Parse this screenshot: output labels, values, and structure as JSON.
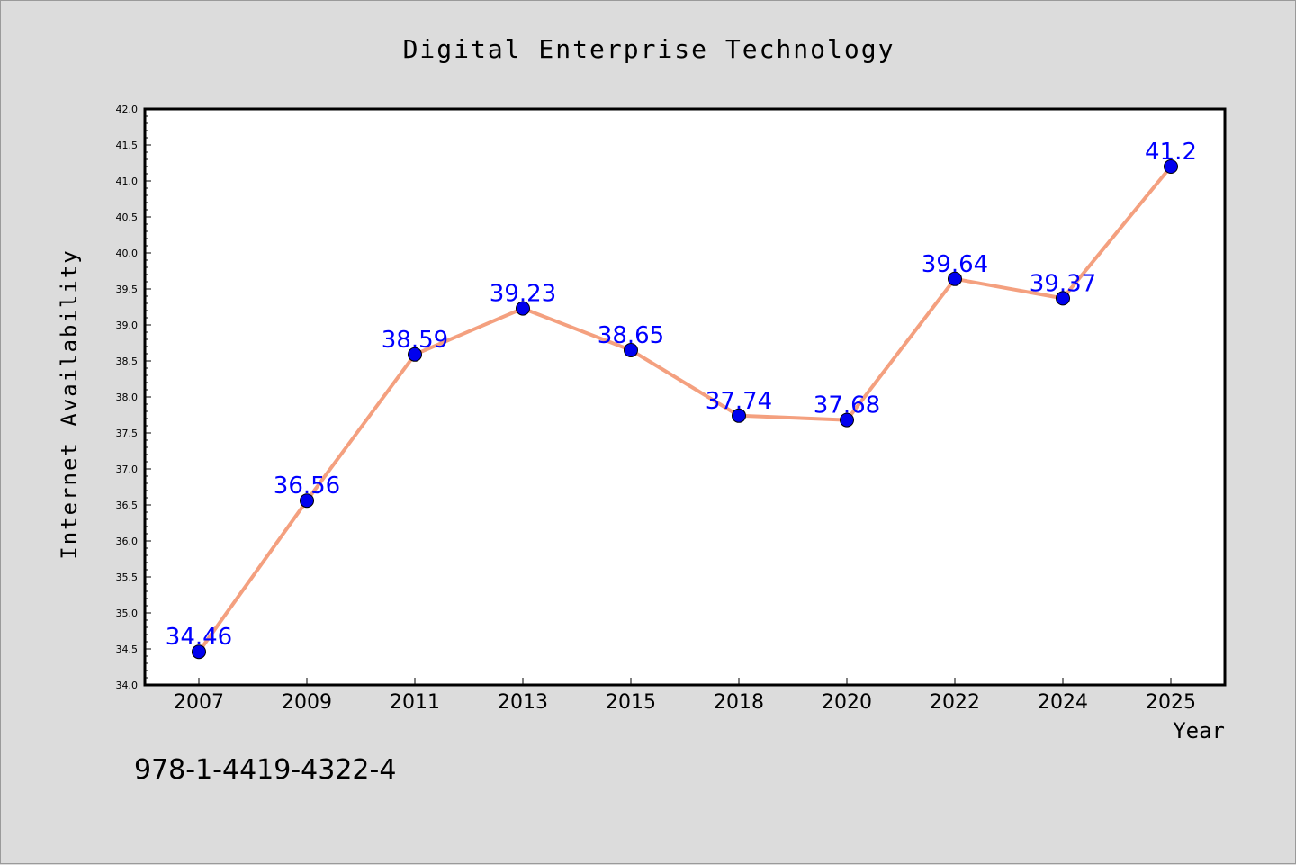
{
  "chart_data": {
    "type": "line",
    "title": "Digital Enterprise Technology",
    "xlabel": "Year",
    "ylabel": "Internet Availability",
    "categories": [
      "2007",
      "2009",
      "2011",
      "2013",
      "2015",
      "2018",
      "2020",
      "2022",
      "2024",
      "2025"
    ],
    "series": [
      {
        "values": [
          34.46,
          36.56,
          38.59,
          39.23,
          38.65,
          37.74,
          37.68,
          39.64,
          39.37,
          41.2
        ],
        "labels": [
          "34.46",
          "36.56",
          "38.59",
          "39.23",
          "38.65",
          "37.74",
          "37.68",
          "39.64",
          "39.37",
          "41.2"
        ]
      }
    ],
    "ylim": [
      34.0,
      42.0
    ],
    "yticks": [
      "34.0",
      "34.5",
      "35.0",
      "35.5",
      "36.0",
      "36.5",
      "37.0",
      "37.5",
      "38.0",
      "38.5",
      "39.0",
      "39.5",
      "40.0",
      "40.5",
      "41.0",
      "41.5",
      "42.0"
    ],
    "grid": false,
    "legend": "none",
    "colors": {
      "line": "#f4a07f",
      "marker": "#0000ee",
      "label": "#0000ff",
      "background": "#dcdcdc",
      "plot_area": "#ffffff"
    }
  },
  "footer": {
    "isbn": "978-1-4419-4322-4"
  }
}
